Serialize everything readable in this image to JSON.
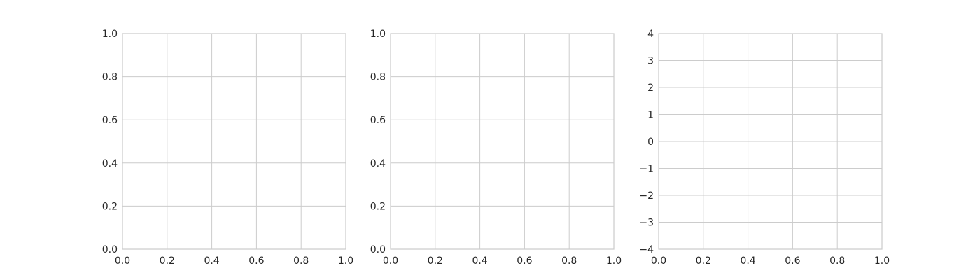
{
  "chart_data": [
    {
      "type": "line",
      "title": "",
      "xlabel": "",
      "ylabel": "",
      "xlim": [
        0,
        1
      ],
      "ylim": [
        0,
        1
      ],
      "xticks": [
        "0.0",
        "0.2",
        "0.4",
        "0.6",
        "0.8",
        "1.0"
      ],
      "yticks": [
        "0.0",
        "0.2",
        "0.4",
        "0.6",
        "0.8",
        "1.0"
      ],
      "series": [],
      "grid": true,
      "legend": "none"
    },
    {
      "type": "line",
      "title": "",
      "xlabel": "",
      "ylabel": "",
      "xlim": [
        0,
        1
      ],
      "ylim": [
        0,
        1
      ],
      "xticks": [
        "0.0",
        "0.2",
        "0.4",
        "0.6",
        "0.8",
        "1.0"
      ],
      "yticks": [
        "0.0",
        "0.2",
        "0.4",
        "0.6",
        "0.8",
        "1.0"
      ],
      "series": [],
      "grid": true,
      "legend": "none"
    },
    {
      "type": "line",
      "title": "",
      "xlabel": "",
      "ylabel": "",
      "xlim": [
        0,
        1
      ],
      "ylim": [
        -4,
        4
      ],
      "xticks": [
        "0.0",
        "0.2",
        "0.4",
        "0.6",
        "0.8",
        "1.0"
      ],
      "yticks": [
        "−4",
        "−3",
        "−2",
        "−1",
        "0",
        "1",
        "2",
        "3",
        "4"
      ],
      "series": [],
      "grid": true,
      "legend": "none"
    }
  ],
  "colors": {
    "grid": "#cccccc",
    "frame": "#cccccc",
    "text": "#262626",
    "background": "#ffffff"
  }
}
